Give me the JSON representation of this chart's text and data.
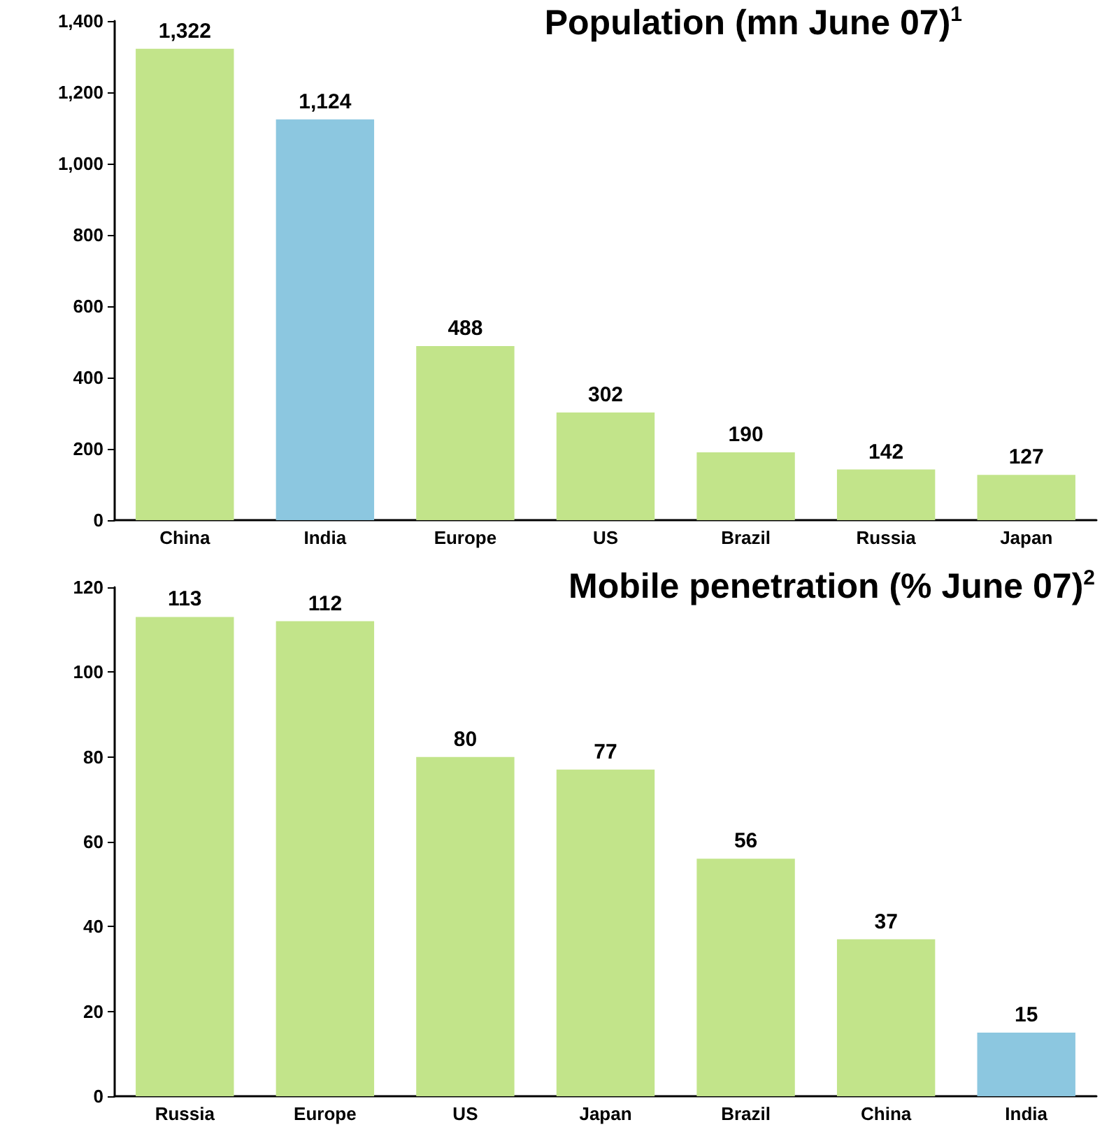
{
  "chart_data": [
    {
      "type": "bar",
      "title": "Population (mn June 07)$^{1}$",
      "categories": [
        "China",
        "India",
        "Europe",
        "US",
        "Brazil",
        "Russia",
        "Japan"
      ],
      "values": [
        1322,
        1124,
        488,
        302,
        190,
        142,
        127
      ],
      "colors": [
        "#c2e48a",
        "#8cc7e0",
        "#c2e48a",
        "#c2e48a",
        "#c2e48a",
        "#c2e48a",
        "#c2e48a"
      ],
      "value_labels": [
        "1,322",
        "1,124",
        "488",
        "302",
        "190",
        "142",
        "127"
      ],
      "ylim": [
        0,
        1400
      ],
      "yticks": [
        0,
        200,
        400,
        600,
        800,
        {
          "value": 1000,
          "label": "1,000"
        },
        {
          "value": 1200,
          "label": "1,200"
        },
        {
          "value": 1400,
          "label": "1,400"
        }
      ]
    },
    {
      "type": "bar",
      "title": "Mobile penetration (% June 07)$^{2}$",
      "categories": [
        "Russia",
        "Europe",
        "US",
        "Japan",
        "Brazil",
        "China",
        "India"
      ],
      "values": [
        113,
        112,
        80,
        77,
        56,
        37,
        15
      ],
      "colors": [
        "#c2e48a",
        "#c2e48a",
        "#c2e48a",
        "#c2e48a",
        "#c2e48a",
        "#c2e48a",
        "#8cc7e0"
      ],
      "data_labels": true,
      "ylim": [
        0,
        120
      ],
      "yticks": [
        0,
        20,
        40,
        60,
        80,
        100,
        120
      ]
    }
  ]
}
